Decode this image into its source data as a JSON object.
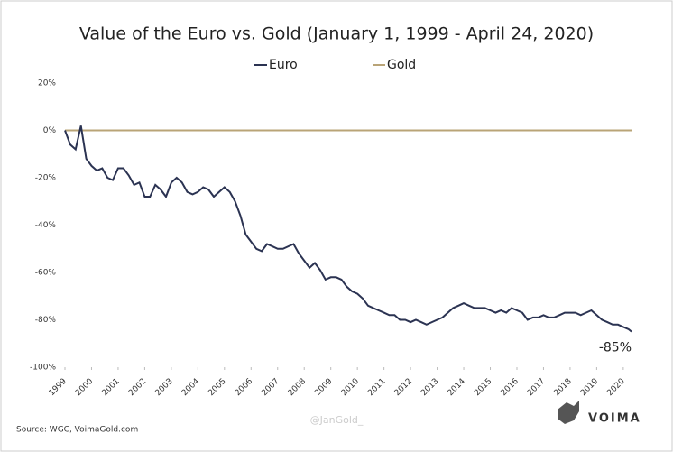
{
  "chart_data": {
    "type": "line",
    "title": "Value of the Euro vs. Gold (January 1, 1999 - April 24, 2020)",
    "annotation": "-85%",
    "source": "Source: WGC, VoimaGold.com",
    "watermark": "@JanGold_",
    "logo": "VOIMA",
    "x": [
      1999.0,
      1999.2,
      1999.4,
      1999.6,
      1999.8,
      2000.0,
      2000.2,
      2000.4,
      2000.6,
      2000.8,
      2001.0,
      2001.2,
      2001.4,
      2001.6,
      2001.8,
      2002.0,
      2002.2,
      2002.4,
      2002.6,
      2002.8,
      2003.0,
      2003.2,
      2003.4,
      2003.6,
      2003.8,
      2004.0,
      2004.2,
      2004.4,
      2004.6,
      2004.8,
      2005.0,
      2005.2,
      2005.4,
      2005.6,
      2005.8,
      2006.0,
      2006.2,
      2006.4,
      2006.6,
      2006.8,
      2007.0,
      2007.2,
      2007.4,
      2007.6,
      2007.8,
      2008.0,
      2008.2,
      2008.4,
      2008.6,
      2008.8,
      2009.0,
      2009.2,
      2009.4,
      2009.6,
      2009.8,
      2010.0,
      2010.2,
      2010.4,
      2010.6,
      2010.8,
      2011.0,
      2011.2,
      2011.4,
      2011.6,
      2011.8,
      2012.0,
      2012.2,
      2012.4,
      2012.6,
      2012.8,
      2013.0,
      2013.2,
      2013.4,
      2013.6,
      2013.8,
      2014.0,
      2014.2,
      2014.4,
      2014.6,
      2014.8,
      2015.0,
      2015.2,
      2015.4,
      2015.6,
      2015.8,
      2016.0,
      2016.2,
      2016.4,
      2016.6,
      2016.8,
      2017.0,
      2017.2,
      2017.4,
      2017.6,
      2017.8,
      2018.0,
      2018.2,
      2018.4,
      2018.6,
      2018.8,
      2019.0,
      2019.2,
      2019.4,
      2019.6,
      2019.8,
      2020.0,
      2020.2,
      2020.31
    ],
    "series": [
      {
        "name": "Euro",
        "color": "#2b3352",
        "values": [
          0,
          -6,
          -8,
          2,
          -12,
          -15,
          -17,
          -16,
          -20,
          -21,
          -16,
          -16,
          -19,
          -23,
          -22,
          -28,
          -28,
          -23,
          -25,
          -28,
          -22,
          -20,
          -22,
          -26,
          -27,
          -26,
          -24,
          -25,
          -28,
          -26,
          -24,
          -26,
          -30,
          -36,
          -44,
          -47,
          -50,
          -51,
          -48,
          -49,
          -50,
          -50,
          -49,
          -48,
          -52,
          -55,
          -58,
          -56,
          -59,
          -63,
          -62,
          -62,
          -63,
          -66,
          -68,
          -69,
          -71,
          -74,
          -75,
          -76,
          -77,
          -78,
          -78,
          -80,
          -80,
          -81,
          -80,
          -81,
          -82,
          -81,
          -80,
          -79,
          -77,
          -75,
          -74,
          -73,
          -74,
          -75,
          -75,
          -75,
          -76,
          -77,
          -76,
          -77,
          -75,
          -76,
          -77,
          -80,
          -79,
          -79,
          -78,
          -79,
          -79,
          -78,
          -77,
          -77,
          -77,
          -78,
          -77,
          -76,
          -78,
          -80,
          -81,
          -82,
          -82,
          -83,
          -84,
          -85
        ]
      },
      {
        "name": "Gold",
        "color": "#b9a477",
        "values": [
          0,
          0,
          0,
          0,
          0,
          0,
          0,
          0,
          0,
          0,
          0,
          0,
          0,
          0,
          0,
          0,
          0,
          0,
          0,
          0,
          0,
          0,
          0,
          0,
          0,
          0,
          0,
          0,
          0,
          0,
          0,
          0,
          0,
          0,
          0,
          0,
          0,
          0,
          0,
          0,
          0,
          0,
          0,
          0,
          0,
          0,
          0,
          0,
          0,
          0,
          0,
          0,
          0,
          0,
          0,
          0,
          0,
          0,
          0,
          0,
          0,
          0,
          0,
          0,
          0,
          0,
          0,
          0,
          0,
          0,
          0,
          0,
          0,
          0,
          0,
          0,
          0,
          0,
          0,
          0,
          0,
          0,
          0,
          0,
          0,
          0,
          0,
          0,
          0,
          0,
          0,
          0,
          0,
          0,
          0,
          0,
          0,
          0,
          0,
          0,
          0,
          0,
          0,
          0,
          0,
          0,
          0,
          0
        ]
      }
    ],
    "xlim": [
      1999,
      2020.31
    ],
    "xticks": [
      1999,
      2000,
      2001,
      2002,
      2003,
      2004,
      2005,
      2006,
      2007,
      2008,
      2009,
      2010,
      2011,
      2012,
      2013,
      2014,
      2015,
      2016,
      2017,
      2018,
      2019,
      2020
    ],
    "ylim": [
      -100,
      20
    ],
    "yticks": [
      {
        "value": -100,
        "label": "-100%"
      },
      {
        "value": -80,
        "label": "-80%"
      },
      {
        "value": -60,
        "label": "-60%"
      },
      {
        "value": -40,
        "label": "-40%"
      },
      {
        "value": -20,
        "label": "-20%"
      },
      {
        "value": 0,
        "label": "0%"
      },
      {
        "value": 20,
        "label": "20%"
      }
    ],
    "grid": false,
    "legend": "top"
  }
}
